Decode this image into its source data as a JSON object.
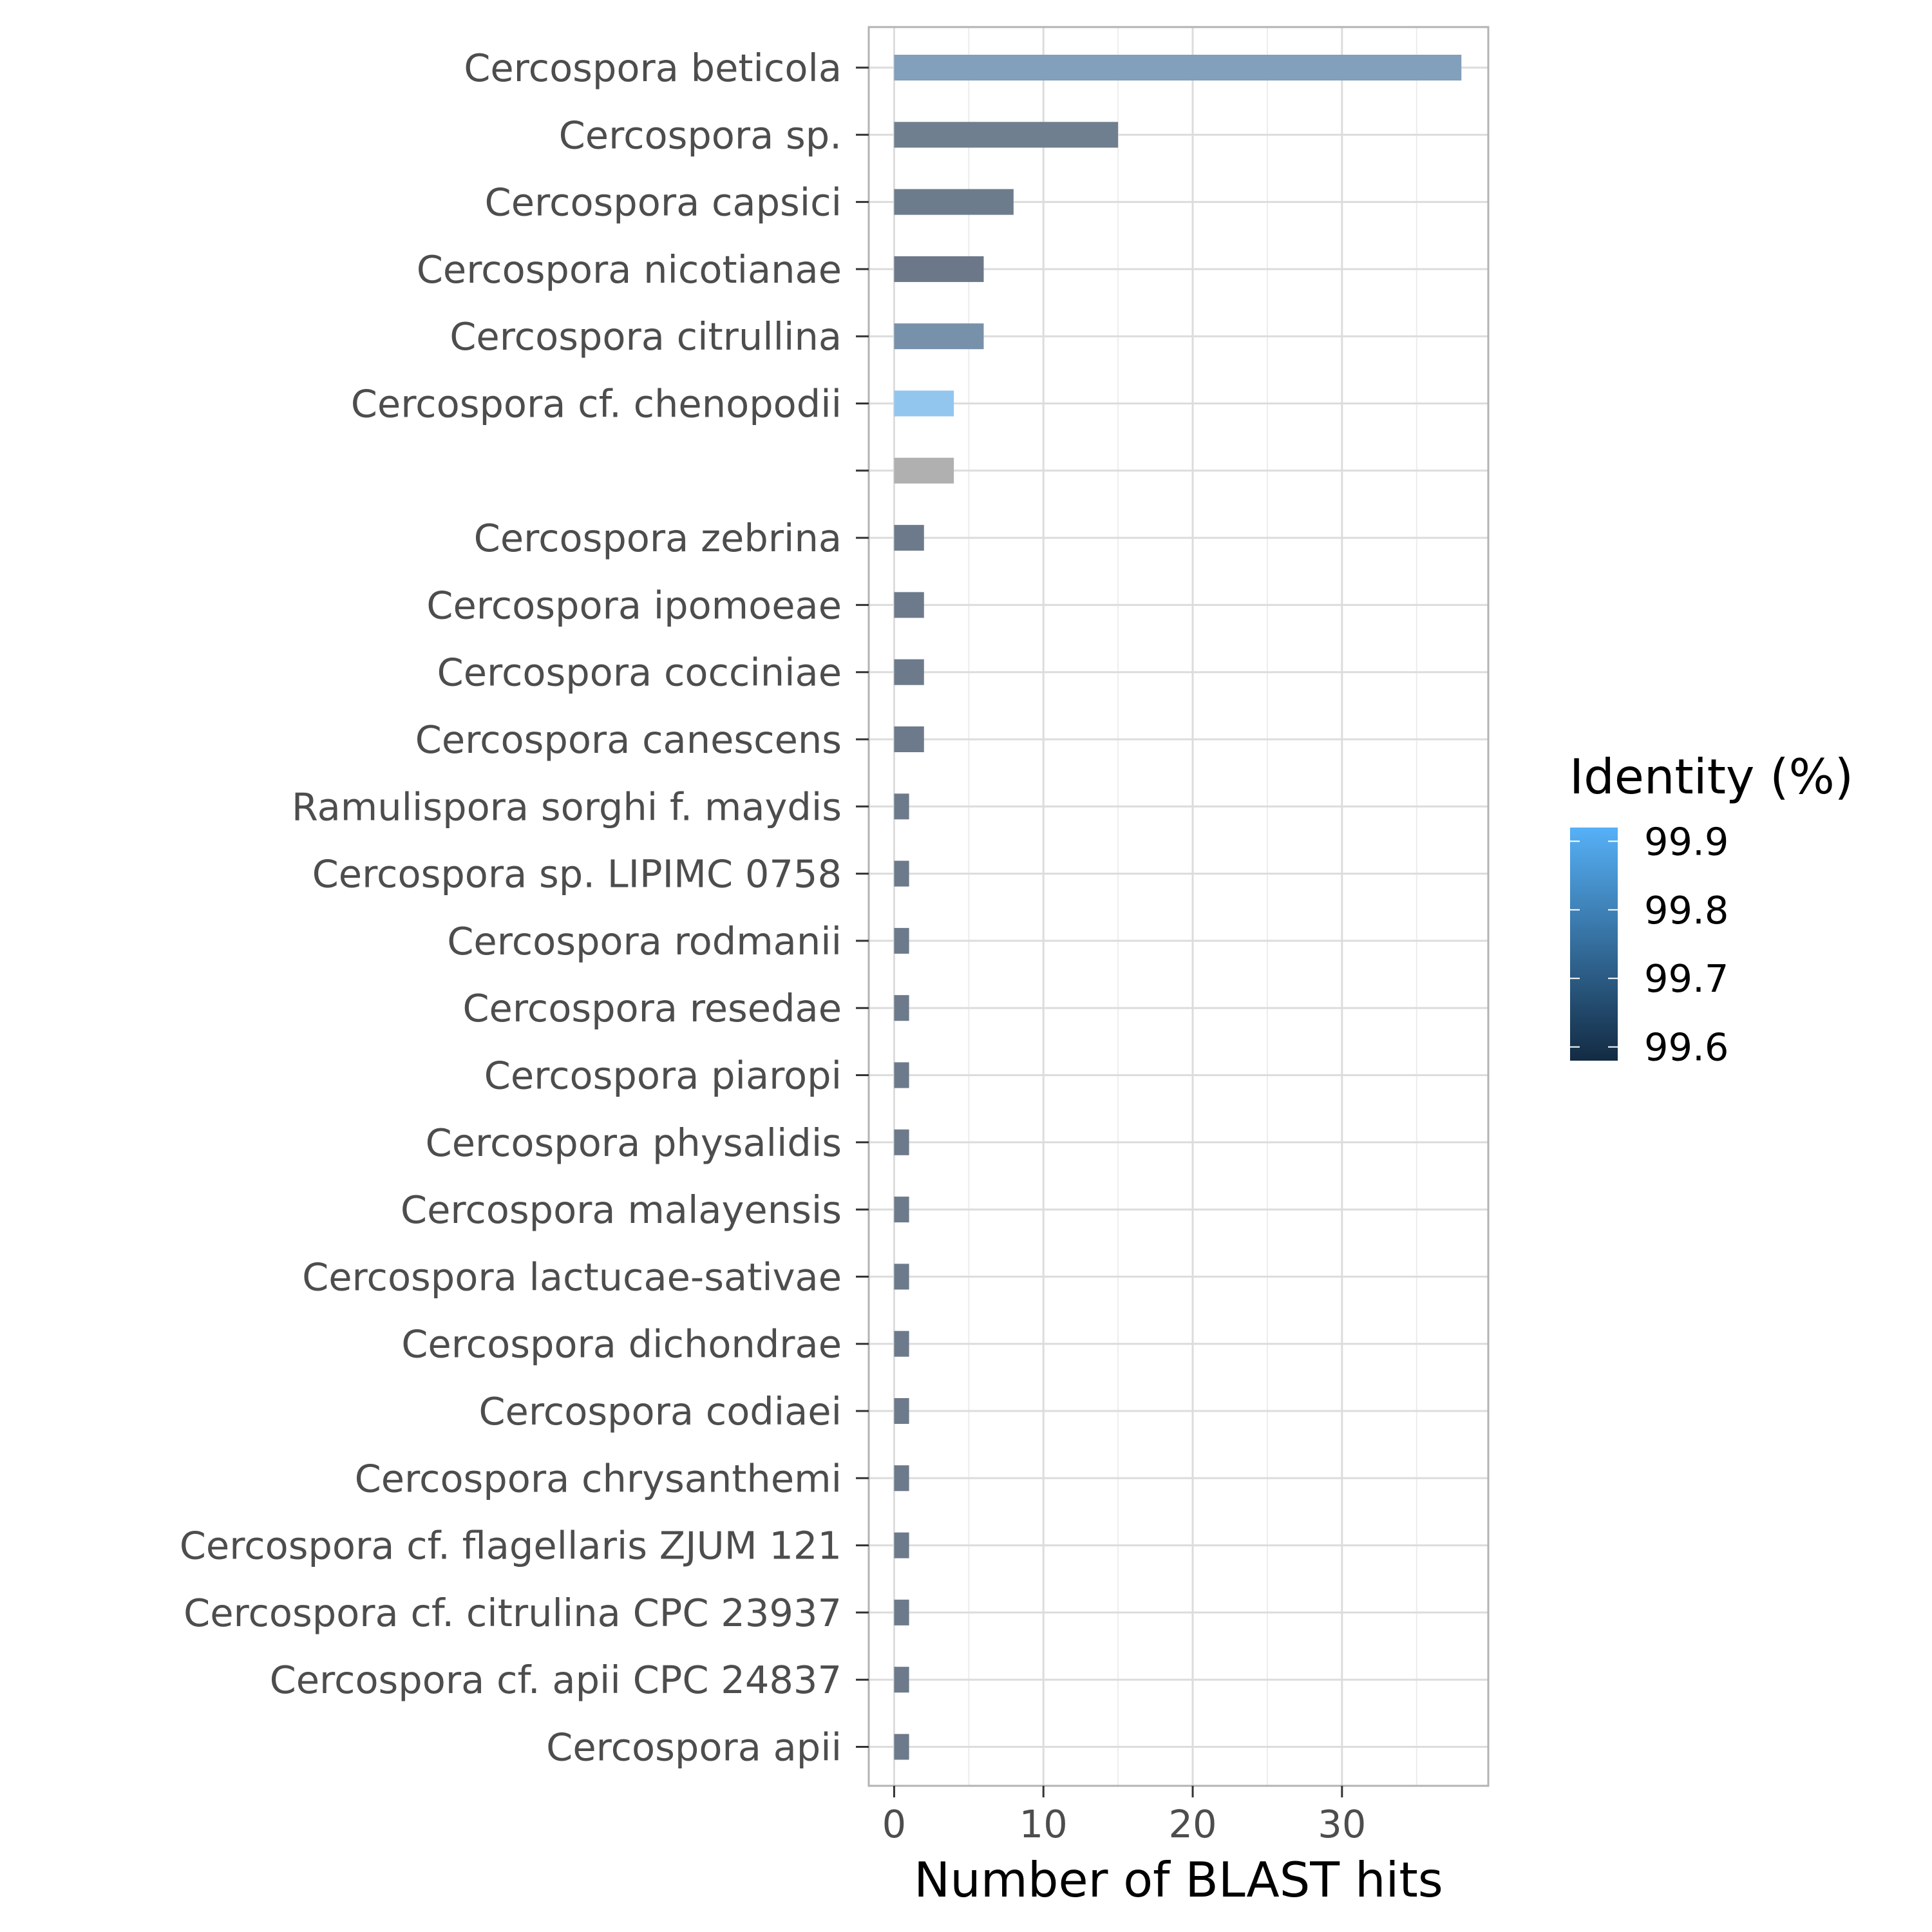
{
  "chart_data": {
    "type": "bar",
    "orientation": "horizontal",
    "categories": [
      "Cercospora beticola",
      "Cercospora sp.",
      "Cercospora capsici",
      "Cercospora nicotianae",
      "Cercospora citrullina",
      "Cercospora cf. chenopodii",
      "",
      "Cercospora zebrina",
      "Cercospora ipomoeae",
      "Cercospora cocciniae",
      "Cercospora canescens",
      "Ramulispora sorghi f. maydis",
      "Cercospora sp. LIPIMC 0758",
      "Cercospora rodmanii",
      "Cercospora resedae",
      "Cercospora piaropi",
      "Cercospora physalidis",
      "Cercospora malayensis",
      "Cercospora lactucae-sativae",
      "Cercospora dichondrae",
      "Cercospora codiaei",
      "Cercospora chrysanthemi",
      "Cercospora cf. flagellaris ZJUM 121",
      "Cercospora cf. citrulina CPC 23937",
      "Cercospora cf. apii CPC 24837",
      "Cercospora apii"
    ],
    "values": [
      38,
      15,
      8,
      6,
      6,
      4,
      4,
      2,
      2,
      2,
      2,
      1,
      1,
      1,
      1,
      1,
      1,
      1,
      1,
      1,
      1,
      1,
      1,
      1,
      1,
      1
    ],
    "bar_colors": [
      "#829fbb",
      "#707f8f",
      "#6d7c8d",
      "#6c7889",
      "#7891aa",
      "#92c6ef",
      "#b0b0b0",
      "#6d7a8b",
      "#6d7a8b",
      "#6d7a8b",
      "#6d7a8b",
      "#6d7a8b",
      "#6d7a8b",
      "#6d7a8b",
      "#6d7a8b",
      "#6d7a8b",
      "#6d7a8b",
      "#6d7a8b",
      "#6d7a8b",
      "#6d7a8b",
      "#6d7a8b",
      "#6d7a8b",
      "#6d7a8b",
      "#6d7a8b",
      "#6d7a8b",
      "#6d7a8b"
    ],
    "xlabel": "Number of BLAST hits",
    "ylabel": "",
    "xlim": [
      -1.7,
      39.8
    ],
    "xticks": [
      0,
      10,
      20,
      30
    ],
    "xtick_labels": [
      "0",
      "10",
      "20",
      "30"
    ],
    "grid": true,
    "legend": {
      "title": "Identity (%)",
      "placement": "right",
      "type": "colorbar",
      "range": [
        99.58,
        99.92
      ],
      "ticks": [
        99.9,
        99.8,
        99.7,
        99.6
      ],
      "tick_labels": [
        "99.9",
        "99.8",
        "99.7",
        "99.6"
      ],
      "color_low": "#132b43",
      "color_high": "#56b1f7"
    }
  }
}
